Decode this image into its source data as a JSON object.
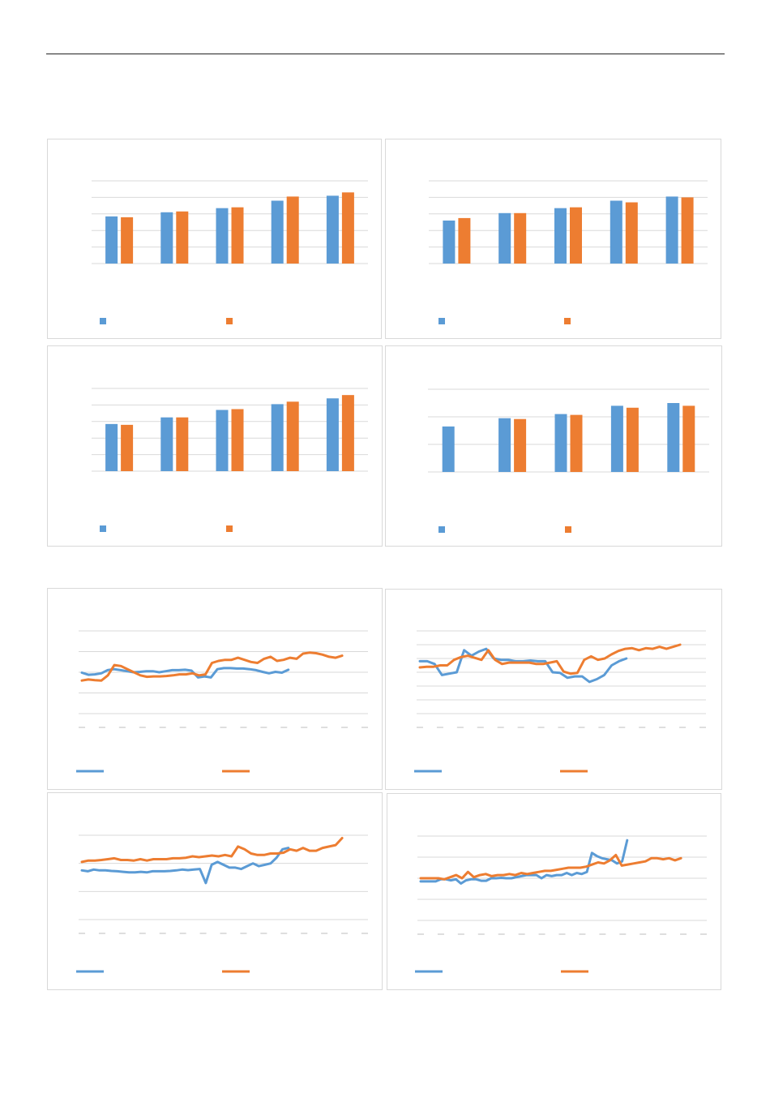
{
  "colors": {
    "series_1": "#5b9bd5",
    "series_2": "#ed7d31",
    "grid": "#d9d9d9",
    "border": "#d9d9d9"
  },
  "chart_data": [
    {
      "type": "bar",
      "categories": [
        "",
        "",
        "",
        "",
        ""
      ],
      "ylim": [
        0,
        5
      ],
      "grid": true,
      "legend": "bottom",
      "series": [
        {
          "values": [
            2.85,
            3.1,
            3.35,
            3.8,
            4.1
          ]
        },
        {
          "values": [
            2.8,
            3.15,
            3.4,
            4.05,
            4.3
          ]
        }
      ]
    },
    {
      "type": "bar",
      "categories": [
        "",
        "",
        "",
        "",
        ""
      ],
      "ylim": [
        0,
        5
      ],
      "grid": true,
      "legend": "bottom",
      "series": [
        {
          "values": [
            2.6,
            3.05,
            3.35,
            3.8,
            4.05
          ]
        },
        {
          "values": [
            2.75,
            3.05,
            3.4,
            3.7,
            4.0
          ]
        }
      ]
    },
    {
      "type": "bar",
      "categories": [
        "",
        "",
        "",
        "",
        ""
      ],
      "ylim": [
        0,
        5
      ],
      "grid": true,
      "legend": "bottom",
      "series": [
        {
          "values": [
            2.85,
            3.25,
            3.7,
            4.05,
            4.4
          ]
        },
        {
          "values": [
            2.8,
            3.25,
            3.75,
            4.2,
            4.6
          ]
        }
      ]
    },
    {
      "type": "bar",
      "categories": [
        "",
        "",
        "",
        "",
        ""
      ],
      "ylim": [
        0,
        3
      ],
      "grid": true,
      "legend": "bottom",
      "series": [
        {
          "values": [
            1.65,
            1.95,
            2.1,
            2.4,
            2.5
          ]
        },
        {
          "values": [
            0,
            1.92,
            2.07,
            2.33,
            2.4
          ]
        }
      ]
    },
    {
      "type": "line",
      "ylim": [
        0,
        4
      ],
      "grid": true,
      "legend": "bottom",
      "x_tick_count": 15,
      "series": [
        {
          "values": [
            1.98,
            1.88,
            1.9,
            1.95,
            2.1,
            2.15,
            2.1,
            2.05,
            2.0,
            2.02,
            2.05,
            2.05,
            2.0,
            2.05,
            2.1,
            2.1,
            2.12,
            2.08,
            1.75,
            1.8,
            1.75,
            2.15,
            2.2,
            2.2,
            2.18,
            2.18,
            2.15,
            2.1,
            2.02,
            1.95,
            2.02,
            1.98,
            2.12
          ]
        },
        {
          "values": [
            1.6,
            1.65,
            1.62,
            1.6,
            1.85,
            2.35,
            2.3,
            2.15,
            2.0,
            1.85,
            1.78,
            1.8,
            1.8,
            1.82,
            1.85,
            1.9,
            1.9,
            1.95,
            1.85,
            1.9,
            2.45,
            2.55,
            2.6,
            2.6,
            2.7,
            2.6,
            2.5,
            2.45,
            2.65,
            2.75,
            2.55,
            2.6,
            2.7,
            2.65,
            2.9,
            2.95,
            2.92,
            2.85,
            2.75,
            2.7,
            2.8
          ]
        }
      ]
    },
    {
      "type": "line",
      "ylim": [
        0,
        6
      ],
      "grid": true,
      "legend": "bottom",
      "x_tick_count": 15,
      "series": [
        {
          "values": [
            3.8,
            3.8,
            3.6,
            2.8,
            2.9,
            3.0,
            4.6,
            4.2,
            4.5,
            4.7,
            4.0,
            3.9,
            3.9,
            3.8,
            3.8,
            3.85,
            3.8,
            3.8,
            3.0,
            2.95,
            2.6,
            2.7,
            2.7,
            2.3,
            2.5,
            2.8,
            3.5,
            3.8,
            4.0
          ]
        },
        {
          "values": [
            3.35,
            3.4,
            3.4,
            3.5,
            3.5,
            3.9,
            4.1,
            4.2,
            4.05,
            3.9,
            4.6,
            3.9,
            3.6,
            3.7,
            3.7,
            3.7,
            3.7,
            3.6,
            3.6,
            3.7,
            3.8,
            3.05,
            2.9,
            2.95,
            3.9,
            4.15,
            3.9,
            4.0,
            4.3,
            4.55,
            4.7,
            4.75,
            4.6,
            4.75,
            4.7,
            4.85,
            4.7,
            4.85,
            5.0
          ]
        }
      ]
    },
    {
      "type": "line",
      "ylim": [
        0,
        3
      ],
      "grid": true,
      "legend": "bottom",
      "x_tick_count": 15,
      "series": [
        {
          "values": [
            1.75,
            1.72,
            1.78,
            1.75,
            1.75,
            1.73,
            1.72,
            1.7,
            1.68,
            1.68,
            1.7,
            1.68,
            1.72,
            1.72,
            1.72,
            1.73,
            1.75,
            1.78,
            1.76,
            1.78,
            1.8,
            1.3,
            1.95,
            2.05,
            1.95,
            1.85,
            1.85,
            1.8,
            1.9,
            2.0,
            1.9,
            1.95,
            2.0,
            2.2,
            2.5,
            2.55
          ]
        },
        {
          "values": [
            2.05,
            2.1,
            2.1,
            2.12,
            2.15,
            2.18,
            2.12,
            2.12,
            2.1,
            2.15,
            2.1,
            2.15,
            2.15,
            2.15,
            2.18,
            2.18,
            2.2,
            2.25,
            2.22,
            2.25,
            2.28,
            2.25,
            2.3,
            2.25,
            2.6,
            2.5,
            2.35,
            2.3,
            2.3,
            2.35,
            2.35,
            2.38,
            2.5,
            2.45,
            2.55,
            2.45,
            2.45,
            2.55,
            2.6,
            2.65,
            2.9
          ]
        }
      ]
    },
    {
      "type": "line",
      "ylim": [
        0,
        4
      ],
      "grid": true,
      "legend": "bottom",
      "x_tick_count": 15,
      "series": [
        {
          "values": [
            1.85,
            1.85,
            1.85,
            1.85,
            1.95,
            1.95,
            1.9,
            1.95,
            1.75,
            1.9,
            1.95,
            1.95,
            1.88,
            1.88,
            2.0,
            2.0,
            2.02,
            2.0,
            2.0,
            2.05,
            2.1,
            2.15,
            2.15,
            2.15,
            2.0,
            2.15,
            2.1,
            2.15,
            2.15,
            2.25,
            2.15,
            2.25,
            2.2,
            2.3,
            3.2,
            3.05,
            2.95,
            2.9,
            2.85,
            2.7,
            2.8,
            3.8
          ]
        },
        {
          "values": [
            2.0,
            2.0,
            2.0,
            2.0,
            1.95,
            2.05,
            2.15,
            2.0,
            2.3,
            2.05,
            2.15,
            2.2,
            2.1,
            2.15,
            2.15,
            2.2,
            2.15,
            2.25,
            2.2,
            2.25,
            2.3,
            2.35,
            2.35,
            2.4,
            2.45,
            2.5,
            2.5,
            2.5,
            2.55,
            2.65,
            2.75,
            2.7,
            2.85,
            3.1,
            2.6,
            2.65,
            2.7,
            2.75,
            2.8,
            2.95,
            2.95,
            2.9,
            2.95,
            2.85,
            2.95
          ]
        }
      ]
    }
  ]
}
